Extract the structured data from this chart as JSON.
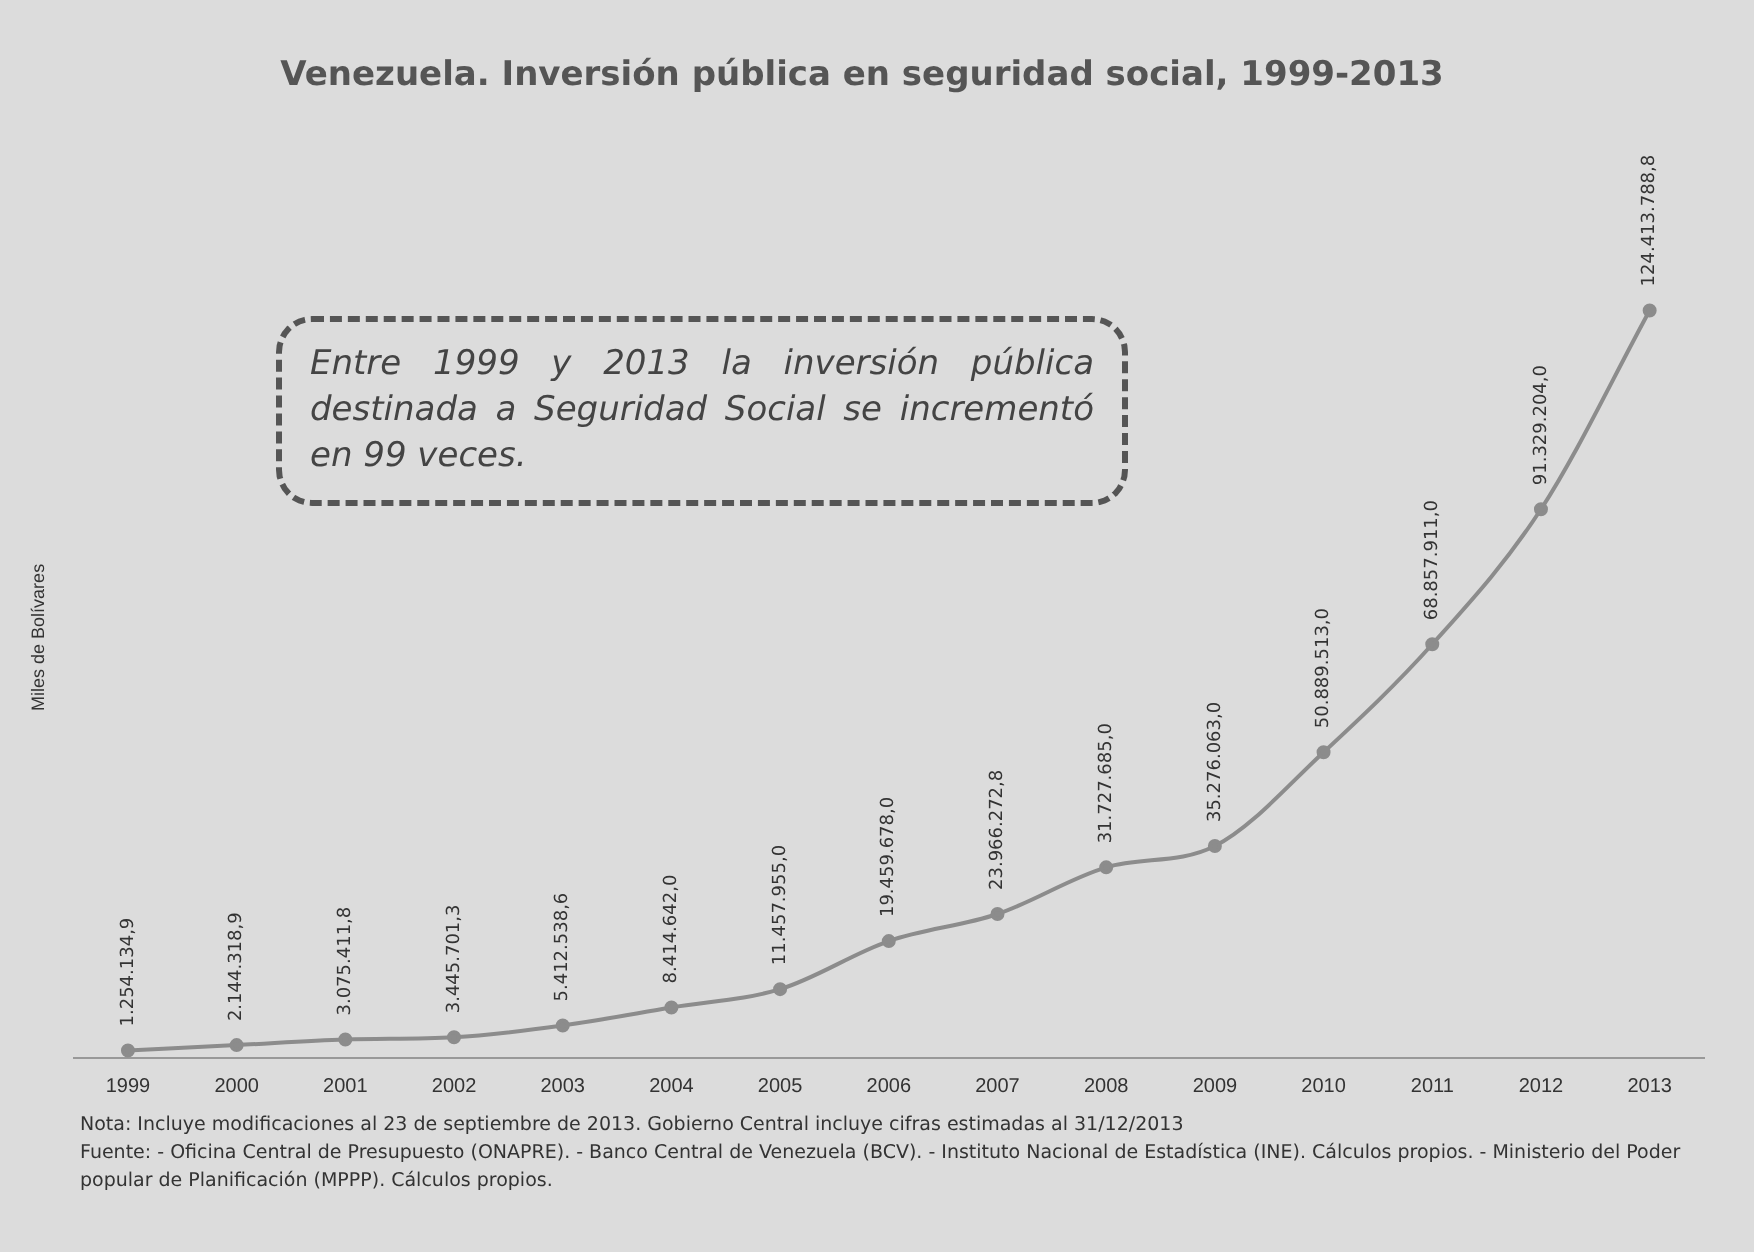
{
  "chart_data": {
    "type": "line",
    "title": "Venezuela. Inversión pública en seguridad social, 1999-2013",
    "ylabel": "Miles de Bolívares",
    "categories": [
      "1999",
      "2000",
      "2001",
      "2002",
      "2003",
      "2004",
      "2005",
      "2006",
      "2007",
      "2008",
      "2009",
      "2010",
      "2011",
      "2012",
      "2013"
    ],
    "series": [
      {
        "color": "#8c8c8c",
        "values": [
          1254134.9,
          2144318.9,
          3075411.8,
          3445701.3,
          5412538.6,
          8414642.0,
          11457955.0,
          19459678.0,
          23966272.8,
          31727685.0,
          35276063.0,
          50889513.0,
          68857911.0,
          91329204.0,
          124413788.8
        ],
        "value_labels": [
          "1.254.134,9",
          "2.144.318,9",
          "3.075.411,8",
          "3.445.701,3",
          "5.412.538,6",
          "8.414.642,0",
          "11.457.955,0",
          "19.459.678,0",
          "23.966.272,8",
          "31.727.685,0",
          "35.276.063,0",
          "50.889.513,0",
          "68.857.911,0",
          "91.329.204,0",
          "124.413.788,8"
        ]
      }
    ],
    "marker": "circle",
    "grid": false,
    "legend": false,
    "annotations": [
      "Entre 1999 y 2013 la inversión pública destinada a Seguridad Social se incrementó en 99 veces.",
      "Nota: Incluye modificaciones al 23 de septiembre de 2013. Gobierno Central incluye cifras estimadas al 31/12/2013",
      "Fuente: - Oficina Central de Presupuesto (ONAPRE). - Banco Central de Venezuela (BCV). - Instituto Nacional de Estadística (INE). Cálculos propios. - Ministerio del Poder popular de Planificación (MPPP). Cálculos propios."
    ]
  }
}
